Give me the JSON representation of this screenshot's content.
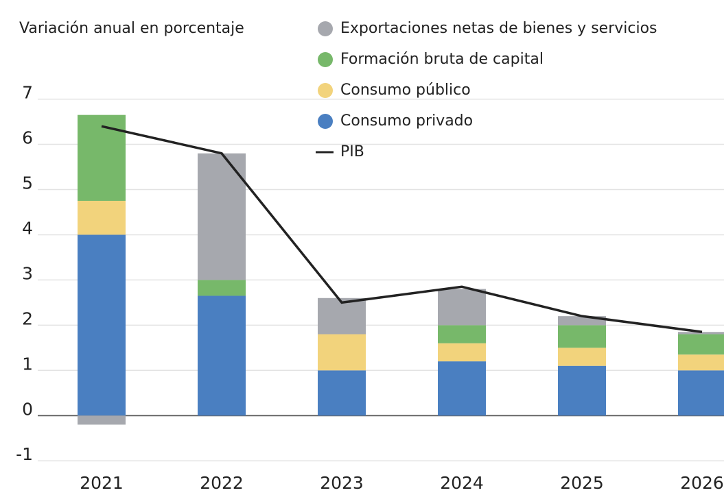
{
  "chart_data": {
    "type": "bar",
    "stacked": true,
    "title": "Variación anual en porcentaje",
    "categories": [
      "2021",
      "2022",
      "2023",
      "2024",
      "2025",
      "2026"
    ],
    "series": [
      {
        "name": "Consumo privado",
        "color": "#4a7fc1",
        "values": [
          4.0,
          2.65,
          1.0,
          1.2,
          1.1,
          1.0
        ]
      },
      {
        "name": "Consumo público",
        "color": "#f2d37c",
        "values": [
          0.75,
          0,
          0.8,
          0.4,
          0.4,
          0.35
        ]
      },
      {
        "name": "Formación bruta de capital",
        "color": "#77b86a",
        "values": [
          1.9,
          0.35,
          0,
          0.4,
          0.5,
          0.45
        ]
      },
      {
        "name": "Exportaciones netas de bienes y servicios",
        "color": "#a6a8ae",
        "values": [
          -0.2,
          2.8,
          0.8,
          0.8,
          0.2,
          0.05
        ]
      }
    ],
    "line": {
      "name": "PIB",
      "color": "#222222",
      "values": [
        6.4,
        5.8,
        2.5,
        2.85,
        2.2,
        1.85
      ]
    },
    "ylim": [
      -1.3,
      7.6
    ],
    "yticks": [
      -1,
      0,
      1,
      2,
      3,
      4,
      5,
      6,
      7
    ],
    "grid": true
  }
}
